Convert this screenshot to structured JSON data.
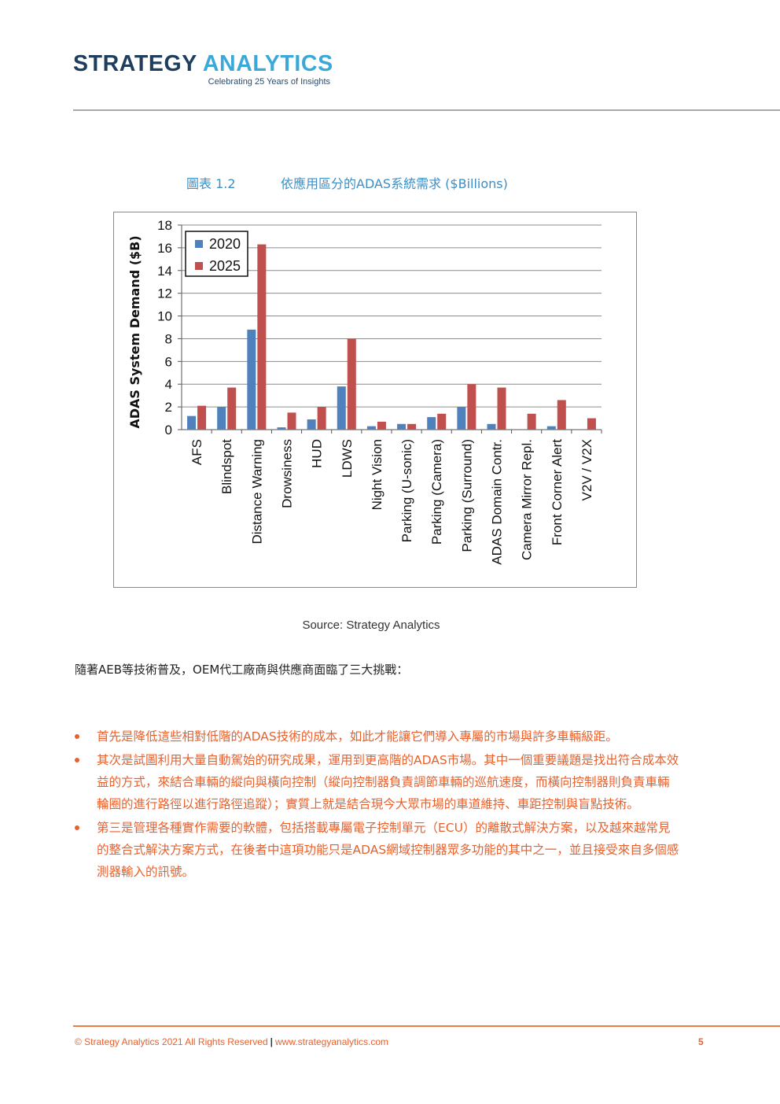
{
  "header": {
    "logo_word1": "STRATEGY",
    "logo_word2": "ANALYTICS",
    "tagline": "Celebrating 25 Years of Insights"
  },
  "figure": {
    "label": "圖表 1.2",
    "title": "依應用區分的ADAS系統需求 ($Billions)",
    "source": "Source: Strategy Analytics"
  },
  "chart_data": {
    "type": "bar",
    "title": "",
    "xlabel": "",
    "ylabel": "ADAS System Demand ($B)",
    "ylim": [
      0,
      18
    ],
    "yticks": [
      0,
      2,
      4,
      6,
      8,
      10,
      12,
      14,
      16,
      18
    ],
    "grid": true,
    "legend_position": "top-left",
    "categories": [
      "AFS",
      "Blindspot",
      "Distance Warning",
      "Drowsiness",
      "HUD",
      "LDWS",
      "Night Vision",
      "Parking (U-sonic)",
      "Parking (Camera)",
      "Parking (Surround)",
      "ADAS Domain Contr.",
      "Camera Mirror Repl.",
      "Front Corner Alert",
      "V2V / V2X"
    ],
    "series": [
      {
        "name": "2020",
        "color": "#4f81bd",
        "values": [
          1.2,
          2.0,
          8.8,
          0.2,
          0.9,
          3.8,
          0.3,
          0.5,
          1.1,
          2.0,
          0.5,
          0.0,
          0.3,
          0.0
        ]
      },
      {
        "name": "2025",
        "color": "#c0504d",
        "values": [
          2.1,
          3.7,
          16.3,
          1.5,
          2.0,
          8.0,
          0.7,
          0.5,
          1.4,
          4.0,
          3.7,
          1.4,
          2.6,
          1.0
        ]
      }
    ]
  },
  "body": {
    "intro": "隨著AEB等技術普及，OEM代工廠商與供應商面臨了三大挑戰：",
    "bullets": [
      "首先是降低這些相對低階的ADAS技術的成本，如此才能讓它們導入專屬的市場與許多車輛級距。",
      "其次是試圖利用大量自動駕始的研究成果，運用到更高階的ADAS市場。其中一個重要議題是找出符合成本效益的方式，來結合車輛的縱向與橫向控制（縱向控制器負責調節車輛的巡航速度，而橫向控制器則負責車輛輪圈的進行路徑以進行路徑追蹤）；實質上就是結合現今大眾市場的車道維持、車距控制與盲點技術。",
      "第三是管理各種實作需要的軟體，包括搭載專屬電子控制單元（ECU）的離散式解決方案，以及越來越常見的整合式解決方案方式，在後者中這項功能只是ADAS網域控制器眾多功能的其中之一，並且接受來自多個感測器輸入的訊號。"
    ]
  },
  "footer": {
    "copyright": "© Strategy Analytics 2021 All Rights Reserved",
    "separator": "|",
    "url": "www.strategyanalytics.com",
    "page_number": "5"
  }
}
